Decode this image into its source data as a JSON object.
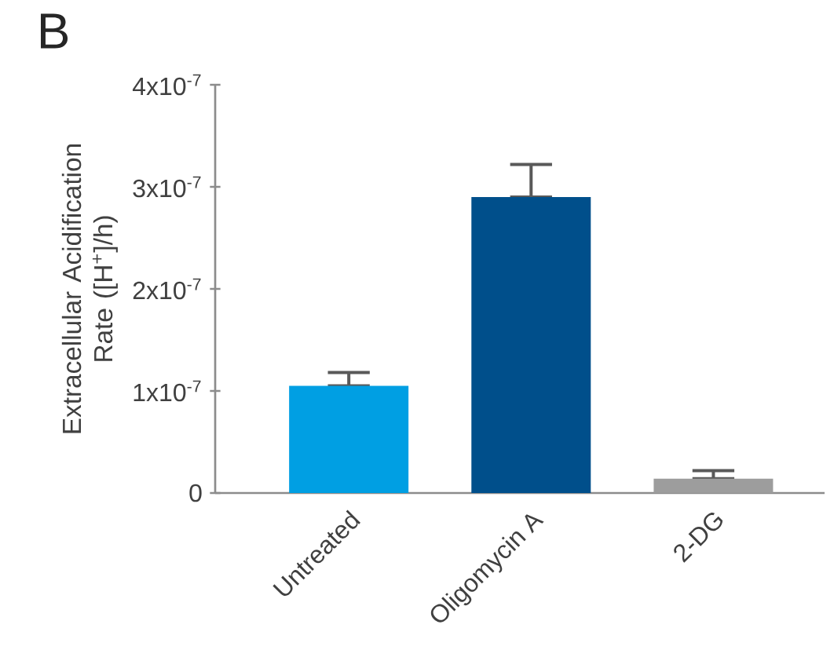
{
  "chart_data": {
    "type": "bar",
    "title": "B",
    "ylabel": "Extracellular Acidification Rate ([H$^{+}$]/h)",
    "categories": [
      "Untreated",
      "Oligomycin A",
      "2-DG"
    ],
    "values": [
      1.05e-07,
      2.9e-07,
      1.4e-08
    ],
    "colors": [
      "#009fe3",
      "#004f8b",
      "#9d9d9d"
    ],
    "errors": [
      [
        1.05e-07,
        1.18e-07
      ],
      [
        2.9e-07,
        3.22e-07
      ],
      [
        1.4e-08,
        2.2e-08
      ]
    ],
    "ylim": [
      0,
      4e-07
    ],
    "yticks": [
      0,
      {
        "value": 1e-07,
        "label": "1x10$^{-7}$"
      },
      {
        "value": 2e-07,
        "label": "2x10$^{-7}$"
      },
      {
        "value": 3e-07,
        "label": "3x10$^{-7}$"
      },
      {
        "value": 4e-07,
        "label": "4x10$^{-7}$"
      }
    ],
    "grid": false
  }
}
